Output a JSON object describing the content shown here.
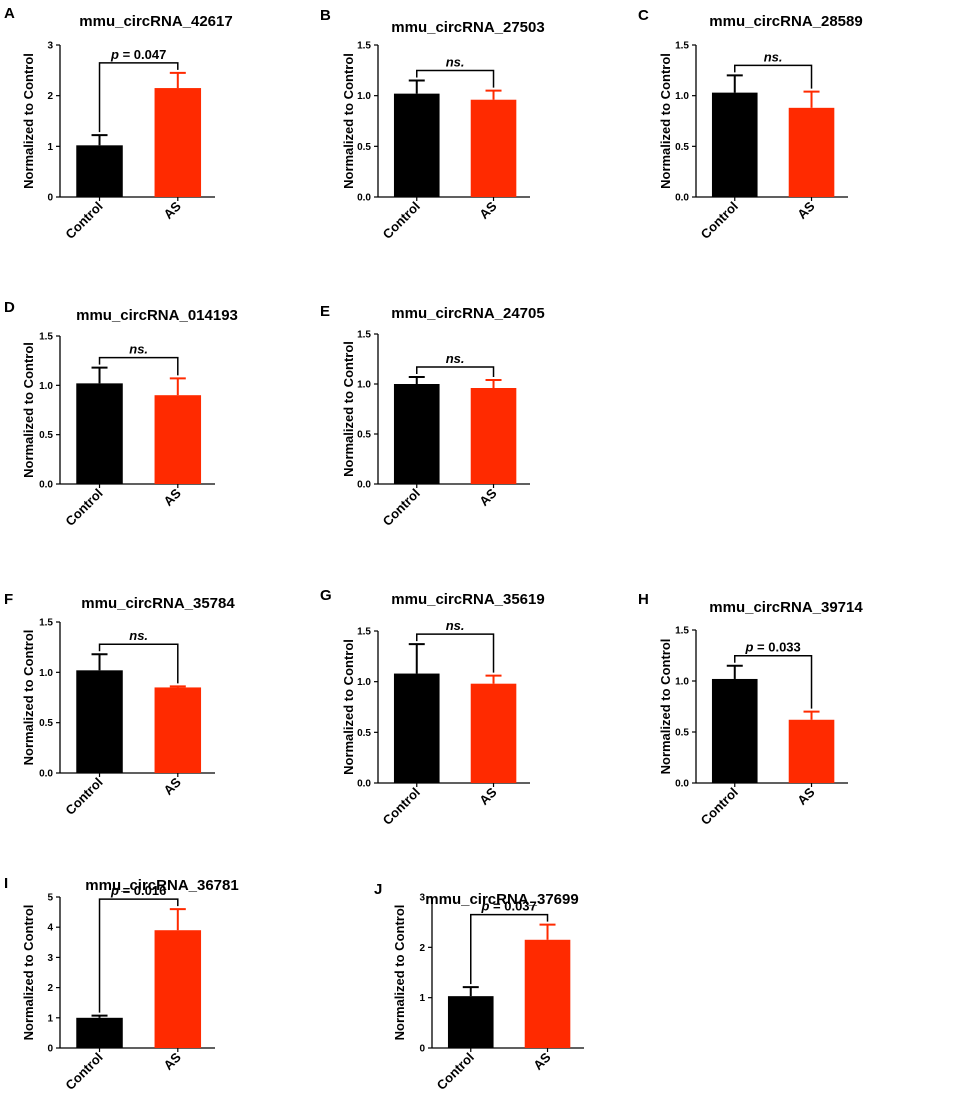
{
  "figure": {
    "type": "multi-panel bar chart"
  },
  "colors": {
    "control": "#000000",
    "as": "#ff2a00",
    "axis": "#000000"
  },
  "chart_data": [
    {
      "panel": "A",
      "type": "bar",
      "title": "mmu_circRNA_42617",
      "ylabel": "Normalized to Control",
      "categories": [
        "Control",
        "AS"
      ],
      "values": [
        1.02,
        2.15
      ],
      "errors": [
        0.2,
        0.3
      ],
      "ylim": [
        0,
        3
      ],
      "yticks": [
        "0",
        "1",
        "2",
        "3"
      ],
      "annotation": {
        "p_label": "p",
        "text": " = 0.047"
      }
    },
    {
      "panel": "B",
      "type": "bar",
      "title": "mmu_circRNA_27503",
      "ylabel": "Normalized to Control",
      "categories": [
        "Control",
        "AS"
      ],
      "values": [
        1.02,
        0.96
      ],
      "errors": [
        0.13,
        0.09
      ],
      "ylim": [
        0,
        1.5
      ],
      "yticks": [
        "0.0",
        "0.5",
        "1.0",
        "1.5"
      ],
      "annotation": {
        "text": "ns."
      }
    },
    {
      "panel": "C",
      "type": "bar",
      "title": "mmu_circRNA_28589",
      "ylabel": "Normalized to Control",
      "categories": [
        "Control",
        "AS"
      ],
      "values": [
        1.03,
        0.88
      ],
      "errors": [
        0.17,
        0.16
      ],
      "ylim": [
        0,
        1.5
      ],
      "yticks": [
        "0.0",
        "0.5",
        "1.0",
        "1.5"
      ],
      "annotation": {
        "text": "ns."
      }
    },
    {
      "panel": "D",
      "type": "bar",
      "title": "mmu_circRNA_014193",
      "ylabel": "Normalized to Control",
      "categories": [
        "Control",
        "AS"
      ],
      "values": [
        1.02,
        0.9
      ],
      "errors": [
        0.16,
        0.17
      ],
      "ylim": [
        0,
        1.5
      ],
      "yticks": [
        "0.0",
        "0.5",
        "1.0",
        "1.5"
      ],
      "annotation": {
        "text": "ns."
      }
    },
    {
      "panel": "E",
      "type": "bar",
      "title": "mmu_circRNA_24705",
      "ylabel": "Normalized to Control",
      "categories": [
        "Control",
        "AS"
      ],
      "values": [
        1.0,
        0.96
      ],
      "errors": [
        0.07,
        0.08
      ],
      "ylim": [
        0,
        1.5
      ],
      "yticks": [
        "0.0",
        "0.5",
        "1.0",
        "1.5"
      ],
      "annotation": {
        "text": "ns."
      }
    },
    {
      "panel": "F",
      "type": "bar",
      "title": "mmu_circRNA_35784",
      "ylabel": "Normalized to Control",
      "categories": [
        "Control",
        "AS"
      ],
      "values": [
        1.02,
        0.85
      ],
      "errors": [
        0.16,
        0.01
      ],
      "ylim": [
        0,
        1.5
      ],
      "yticks": [
        "0.0",
        "0.5",
        "1.0",
        "1.5"
      ],
      "annotation": {
        "text": "ns."
      }
    },
    {
      "panel": "G",
      "type": "bar",
      "title": "mmu_circRNA_35619",
      "ylabel": "Normalized to Control",
      "categories": [
        "Control",
        "AS"
      ],
      "values": [
        1.08,
        0.98
      ],
      "errors": [
        0.29,
        0.08
      ],
      "ylim": [
        0,
        1.5
      ],
      "yticks": [
        "0.0",
        "0.5",
        "1.0",
        "1.5"
      ],
      "annotation": {
        "text": "ns."
      }
    },
    {
      "panel": "H",
      "type": "bar",
      "title": "mmu_circRNA_39714",
      "ylabel": "Normalized to Control",
      "categories": [
        "Control",
        "AS"
      ],
      "values": [
        1.02,
        0.62
      ],
      "errors": [
        0.13,
        0.08
      ],
      "ylim": [
        0,
        1.5
      ],
      "yticks": [
        "0.0",
        "0.5",
        "1.0",
        "1.5"
      ],
      "annotation": {
        "p_label": "p",
        "text": " = 0.033"
      }
    },
    {
      "panel": "I",
      "type": "bar",
      "title": "mmu_circRNA_36781",
      "ylabel": "Normalized to Control",
      "categories": [
        "Control",
        "AS"
      ],
      "values": [
        1.0,
        3.9
      ],
      "errors": [
        0.07,
        0.7
      ],
      "ylim": [
        0,
        5
      ],
      "yticks": [
        "0",
        "1",
        "2",
        "3",
        "4",
        "5"
      ],
      "annotation": {
        "p_label": "p",
        "text": " = 0.016"
      }
    },
    {
      "panel": "J",
      "type": "bar",
      "title": "mmu_circRNA_37699",
      "ylabel": "Normalized to Control",
      "categories": [
        "Control",
        "AS"
      ],
      "values": [
        1.03,
        2.15
      ],
      "errors": [
        0.18,
        0.3
      ],
      "ylim": [
        0,
        3
      ],
      "yticks": [
        "0",
        "1",
        "2",
        "3"
      ],
      "annotation": {
        "p_label": "p",
        "text": " = 0.037"
      }
    }
  ]
}
